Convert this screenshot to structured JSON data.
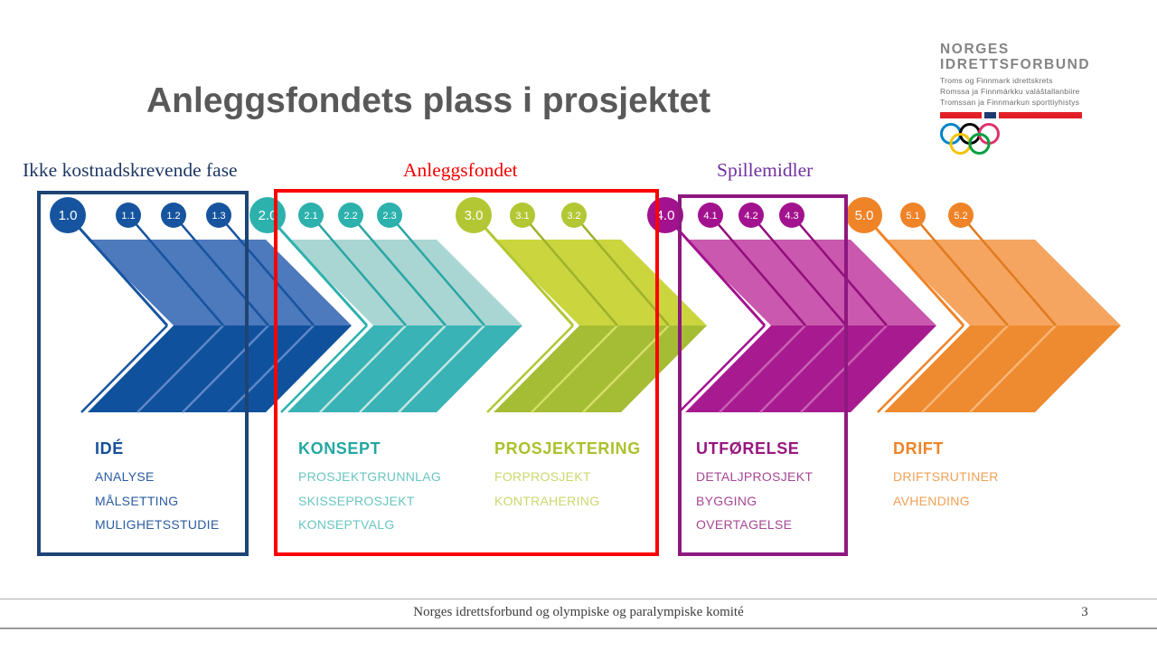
{
  "slide": {
    "title": "Anleggsfondets plass i prosjektet",
    "footer": "Norges idrettsforbund og olympiske og paralympiske komité",
    "page_number": "3"
  },
  "logo": {
    "line1": "NORGES",
    "line2": "IDRETTSFORBUND",
    "sub1": "Troms og Finnmark idrettskrets",
    "sub2": "Romssa ja Finnmárkku valáštallanbiire",
    "sub3": "Tromssan ja Finnmarkun sporttiyhistys",
    "flag_red": "#e21f26",
    "flag_navy": "#1f3a6e",
    "ring_colors": [
      "#0085c7",
      "#000000",
      "#e0336d",
      "#f4c300",
      "#009f3d"
    ]
  },
  "annotations": [
    {
      "label": "Ikke kostnadskrevende fase",
      "color": "#1f3864"
    },
    {
      "label": "Anleggsfondet",
      "color": "#f60000"
    },
    {
      "label": "Spillemidler",
      "color": "#7030a0"
    }
  ],
  "phases": [
    {
      "circles": [
        "1.0",
        "1.1",
        "1.2",
        "1.3"
      ],
      "heading": "IDÉ",
      "items": [
        "ANALYSE",
        "MÅLSETTING",
        "MULIGHETSSTUDIE"
      ],
      "colors": {
        "circle": "#17549f",
        "top": "#4d79bd",
        "bottom": "#0f519d",
        "sepTop": "#17549f",
        "sepBottom": "#5f87c6",
        "heading": "#174f9b",
        "item": "#2b5da1"
      }
    },
    {
      "circles": [
        "2.0",
        "2.1",
        "2.2",
        "2.3"
      ],
      "heading": "KONSEPT",
      "items": [
        "PROSJEKTGRUNNLAG",
        "SKISSEPROSJEKT",
        "KONSEPTVALG"
      ],
      "colors": {
        "circle": "#2db1ad",
        "top": "#a9d6d2",
        "bottom": "#39b3b5",
        "sepTop": "#2aa6a6",
        "sepBottom": "#c2e4e1",
        "heading": "#25a7a2",
        "item": "#6ac6c1"
      }
    },
    {
      "circles": [
        "3.0",
        "3.1",
        "3.2"
      ],
      "heading": "PROSJEKTERING",
      "items": [
        "FORPROSJEKT",
        "KONTRAHERING"
      ],
      "colors": {
        "circle": "#b2c733",
        "top": "#cbd53e",
        "bottom": "#a5bc35",
        "sepTop": "#9fb12c",
        "sepBottom": "#d4df66",
        "heading": "#acc12d",
        "item": "#ccd76d"
      }
    },
    {
      "circles": [
        "4.0",
        "4.1",
        "4.2",
        "4.3"
      ],
      "heading": "UTFØRELSE",
      "items": [
        "DETALJPROSJEKT",
        "BYGGING",
        "OVERTAGELSE"
      ],
      "colors": {
        "circle": "#a3128e",
        "top": "#c958ae",
        "bottom": "#a81b90",
        "sepTop": "#930e7c",
        "sepBottom": "#c760b3",
        "heading": "#97177f",
        "item": "#a74795"
      }
    },
    {
      "circles": [
        "5.0",
        "5.1",
        "5.2"
      ],
      "heading": "DRIFT",
      "items": [
        "DRIFTSRUTINER",
        "AVHENDING"
      ],
      "colors": {
        "circle": "#ef8327",
        "top": "#f5a560",
        "bottom": "#ee8a2f",
        "sepTop": "#df7b1f",
        "sepBottom": "#f7b678",
        "heading": "#ee8426",
        "item": "#f2a055"
      }
    }
  ]
}
